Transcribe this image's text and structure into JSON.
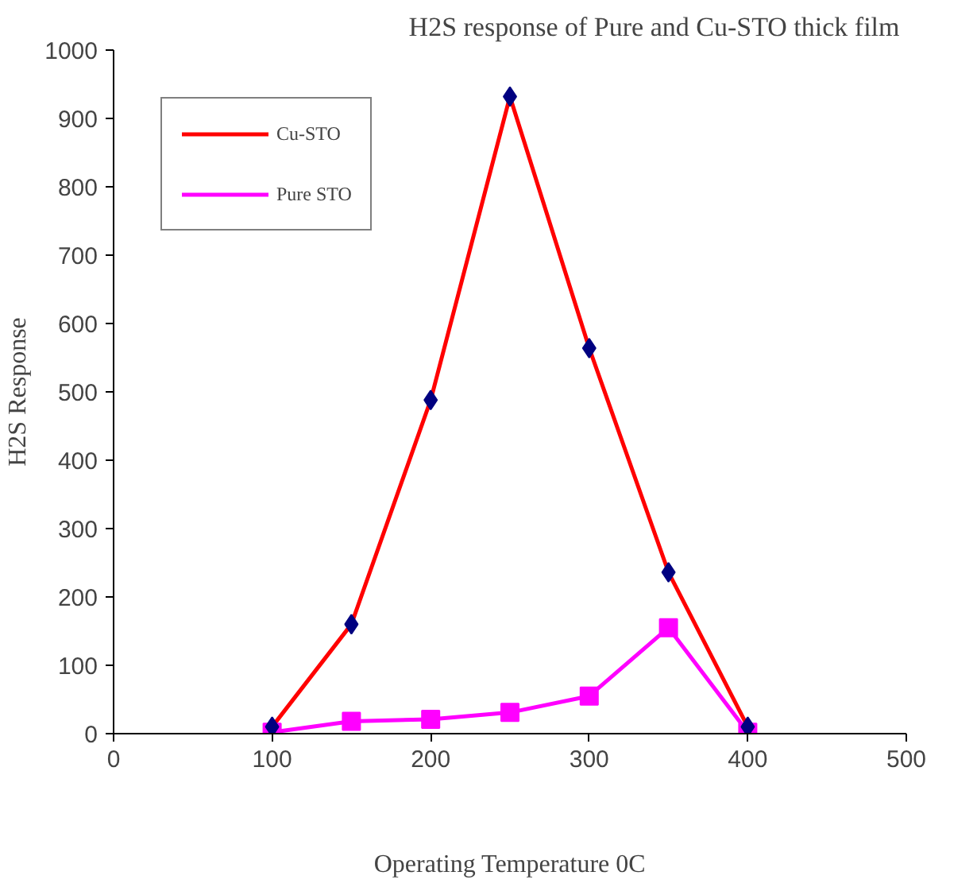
{
  "chart_data": {
    "type": "line",
    "title": "H2S response of  Pure and Cu-STO thick film",
    "xlabel": "Operating Temperature 0C",
    "ylabel": "H2S Response",
    "x": [
      100,
      150,
      200,
      250,
      300,
      350,
      400
    ],
    "series": [
      {
        "name": "Cu-STO",
        "color": "#ff0000",
        "colors": [
          "#000080",
          "#000080",
          "#000080",
          "#000080",
          "#000080",
          "#000080",
          "#000080"
        ],
        "marker": "diamond",
        "values": [
          10,
          160,
          488,
          932,
          564,
          236,
          10
        ]
      },
      {
        "name": "Pure STO",
        "color": "#ff00ff",
        "marker": "square",
        "values": [
          2,
          18,
          21,
          31,
          55,
          155,
          2
        ]
      }
    ],
    "xlim": [
      0,
      500
    ],
    "xticks": [
      0,
      100,
      200,
      300,
      400,
      500
    ],
    "ylim": [
      0,
      1000
    ],
    "yticks": [
      0,
      100,
      200,
      300,
      400,
      500,
      600,
      700,
      800,
      900,
      1000
    ],
    "grid": false,
    "legend": "top left"
  }
}
